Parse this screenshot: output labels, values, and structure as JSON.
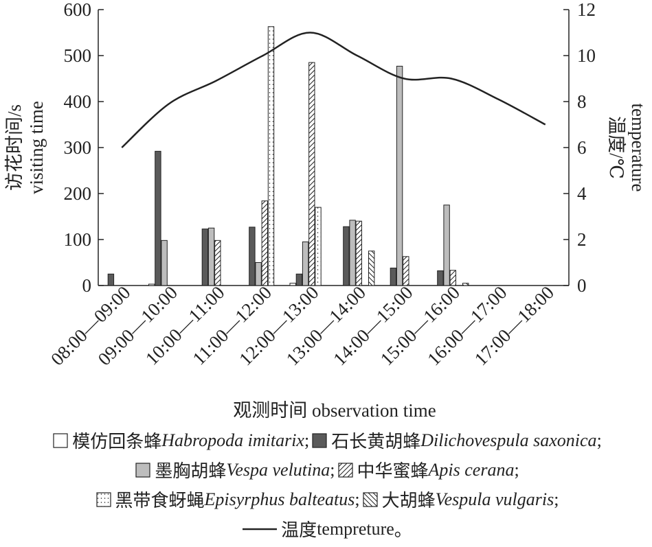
{
  "chart_data": {
    "type": "bar",
    "categories": [
      "08:00—09:00",
      "09:00—10:00",
      "10:00—11:00",
      "11:00—12:00",
      "12:00—13:00",
      "13:00—14:00",
      "14:00—15:00",
      "15:00—16:00",
      "16:00—17:00",
      "17:00—18:00"
    ],
    "series": [
      {
        "name": "模仿回条蜂",
        "latin": "Habropoda imitarix",
        "color": "#ffffff",
        "values": [
          0,
          3,
          0,
          0,
          5,
          0,
          0,
          0,
          0,
          0
        ]
      },
      {
        "name": "石长黄胡蜂",
        "latin": "Dilichovespula saxonica",
        "color": "#5a5a5a",
        "values": [
          25,
          292,
          123,
          127,
          25,
          128,
          38,
          32,
          0,
          0
        ]
      },
      {
        "name": "墨胸胡蜂",
        "latin": "Vespa velutina",
        "color": "#bdbdbd",
        "values": [
          0,
          98,
          125,
          50,
          95,
          142,
          477,
          175,
          0,
          0
        ]
      },
      {
        "name": "中华蜜蜂",
        "latin": "Apis cerana",
        "color": "#ffffff",
        "pattern": "diag",
        "values": [
          0,
          0,
          98,
          184,
          485,
          140,
          63,
          33,
          0,
          0
        ]
      },
      {
        "name": "黑带食蚜蝇",
        "latin": "Episyrphus balteatus",
        "color": "#ffffff",
        "pattern": "dots",
        "values": [
          0,
          0,
          0,
          563,
          170,
          0,
          0,
          0,
          0,
          0
        ]
      },
      {
        "name": "大胡蜂",
        "latin": "Vespula vulgaris",
        "color": "#ffffff",
        "pattern": "back",
        "values": [
          0,
          0,
          0,
          0,
          0,
          75,
          0,
          5,
          0,
          0
        ]
      },
      {
        "name": "温度",
        "latin": "tempreture",
        "type": "line",
        "axis": "y2",
        "color": "#222222",
        "values": [
          6.0,
          7.9,
          8.9,
          10.0,
          11.0,
          10.0,
          9.0,
          9.0,
          8.1,
          7.0
        ]
      }
    ],
    "legend_separator": ";",
    "legend_end": "。",
    "ylim": [
      0,
      600
    ],
    "yticks": [
      0,
      100,
      200,
      300,
      400,
      500,
      600
    ],
    "y2lim": [
      0,
      12
    ],
    "y2ticks": [
      0,
      2,
      4,
      6,
      8,
      10,
      12
    ],
    "y_label": [
      "访花时间/s",
      "visiting time"
    ],
    "y2_label": [
      "温度/℃",
      "temperature"
    ],
    "x_label": "观测时间 observation time"
  }
}
